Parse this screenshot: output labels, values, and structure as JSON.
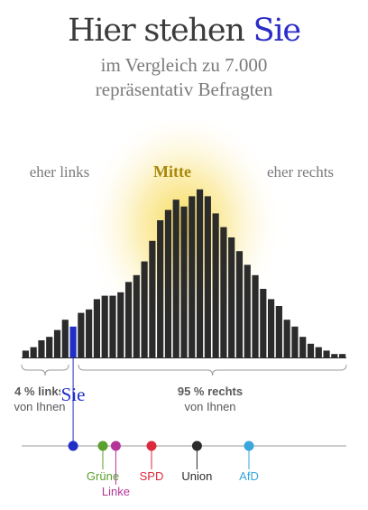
{
  "header": {
    "title_main": "Hier stehen ",
    "title_highlight": "Sie",
    "subtitle_line1": "im Vergleich zu 7.000",
    "subtitle_line2": "repräsentativ Befragten"
  },
  "colors": {
    "bar": "#2b2b2b",
    "user_bar": "#1f2fc8",
    "glow": "#f7d84a",
    "mitte_label": "#a8880a",
    "axis": "#9a9a9a",
    "text_gray": "#777777"
  },
  "chart_data": {
    "type": "bar",
    "region_labels": {
      "left": "eher links",
      "center": "Mitte",
      "right": "eher rechts"
    },
    "values": [
      2,
      3,
      5,
      6,
      8,
      11,
      9,
      13,
      14,
      17,
      18,
      18,
      19,
      22,
      24,
      28,
      34,
      40,
      43,
      46,
      44,
      47,
      49,
      47,
      42,
      38,
      35,
      31,
      27,
      24,
      20,
      17,
      15,
      11,
      9,
      6,
      4,
      3,
      2,
      1,
      1
    ],
    "user_bin_index": 6,
    "ylim": [
      0,
      50
    ],
    "user_marker_label": "Sie",
    "left_summary": {
      "line1": "4 % links",
      "line2": "von Ihnen"
    },
    "right_summary": {
      "line1": "95 % rechts",
      "line2": "von Ihnen"
    }
  },
  "parties": [
    {
      "name": "Grüne",
      "position": 0.25,
      "color": "#5aa02c",
      "label_row": 1
    },
    {
      "name": "Linke",
      "position": 0.29,
      "color": "#b4359a",
      "label_row": 2
    },
    {
      "name": "SPD",
      "position": 0.4,
      "color": "#dc2a3c",
      "label_row": 1
    },
    {
      "name": "Union",
      "position": 0.54,
      "color": "#2b2b2b",
      "label_row": 1
    },
    {
      "name": "AfD",
      "position": 0.7,
      "color": "#3aa6dc",
      "label_row": 1
    }
  ],
  "user_position": 0.15
}
